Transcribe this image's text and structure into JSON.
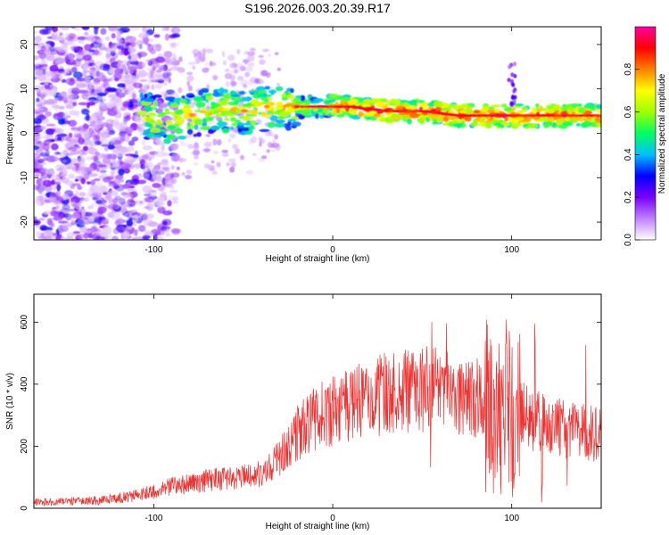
{
  "title": "S196.2026.003.20.39.R17",
  "chart_data": [
    {
      "type": "heatmap",
      "xlabel": "Height of straight line (km)",
      "ylabel": "Frequency (Hz)",
      "xlim": [
        -167,
        150
      ],
      "ylim": [
        -24,
        24
      ],
      "x_ticks": [
        -100,
        0,
        100
      ],
      "y_ticks": [
        -20,
        -10,
        0,
        10,
        20
      ],
      "colorbar": {
        "label": "Normalized spectral amplitude",
        "range": [
          0,
          1
        ],
        "ticks": [
          "0.0",
          "0.2",
          "0.4",
          "0.6",
          "0.8"
        ],
        "colors": [
          "#ffffff",
          "#c080ff",
          "#7a00ff",
          "#0000ff",
          "#00c0ff",
          "#00ff60",
          "#a0ff00",
          "#ffff00",
          "#ff8000",
          "#ff0000",
          "#ff00a0"
        ]
      },
      "ridge": [
        {
          "x": -107,
          "y": 4
        },
        {
          "x": -90,
          "y": 3
        },
        {
          "x": -70,
          "y": 5
        },
        {
          "x": -50,
          "y": 5
        },
        {
          "x": -30,
          "y": 6
        },
        {
          "x": -10,
          "y": 6
        },
        {
          "x": 10,
          "y": 6
        },
        {
          "x": 30,
          "y": 5
        },
        {
          "x": 50,
          "y": 5
        },
        {
          "x": 70,
          "y": 4
        },
        {
          "x": 90,
          "y": 4
        },
        {
          "x": 110,
          "y": 4
        },
        {
          "x": 130,
          "y": 4
        },
        {
          "x": 150,
          "y": 4
        }
      ]
    },
    {
      "type": "line",
      "xlabel": "Height of straight line (km)",
      "ylabel": "SNR (10 * v/v)",
      "xlim": [
        -167,
        150
      ],
      "ylim": [
        0,
        690
      ],
      "x_ticks": [
        -100,
        0,
        100
      ],
      "y_ticks": [
        0,
        200,
        400,
        600
      ],
      "line_color": "#ee3333",
      "envelope": [
        {
          "x": -167,
          "y": 20
        },
        {
          "x": -130,
          "y": 25
        },
        {
          "x": -110,
          "y": 40
        },
        {
          "x": -90,
          "y": 70
        },
        {
          "x": -70,
          "y": 90
        },
        {
          "x": -50,
          "y": 100
        },
        {
          "x": -40,
          "y": 110
        },
        {
          "x": -30,
          "y": 160
        },
        {
          "x": -20,
          "y": 240
        },
        {
          "x": -10,
          "y": 290
        },
        {
          "x": 0,
          "y": 310
        },
        {
          "x": 10,
          "y": 330
        },
        {
          "x": 20,
          "y": 355
        },
        {
          "x": 30,
          "y": 370
        },
        {
          "x": 40,
          "y": 380
        },
        {
          "x": 50,
          "y": 385
        },
        {
          "x": 60,
          "y": 380
        },
        {
          "x": 70,
          "y": 370
        },
        {
          "x": 80,
          "y": 360
        },
        {
          "x": 90,
          "y": 300
        },
        {
          "x": 100,
          "y": 320
        },
        {
          "x": 110,
          "y": 290
        },
        {
          "x": 130,
          "y": 255
        },
        {
          "x": 150,
          "y": 235
        }
      ]
    }
  ]
}
